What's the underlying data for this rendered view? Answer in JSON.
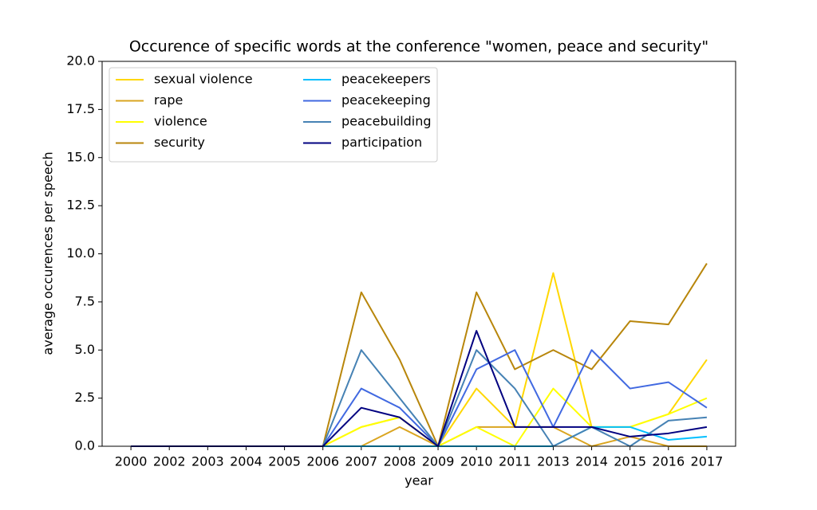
{
  "chart_data": {
    "type": "line",
    "title": "Occurence of specific words at the conference \"women, peace and security\"",
    "x_label": "year",
    "y_label": "average occurences per speech",
    "categories": [
      "2000",
      "2002",
      "2003",
      "2004",
      "2005",
      "2006",
      "2007",
      "2008",
      "2009",
      "2010",
      "2011",
      "2013",
      "2014",
      "2015",
      "2016",
      "2017"
    ],
    "ylim": [
      0,
      20
    ],
    "yticks": [
      {
        "value": 0,
        "label": "0.0"
      },
      2.5,
      {
        "value": 5,
        "label": "5.0"
      },
      7.5,
      {
        "value": 10,
        "label": "10.0"
      },
      12.5,
      {
        "value": 15,
        "label": "15.0"
      },
      17.5,
      {
        "value": 20,
        "label": "20.0"
      }
    ],
    "legend": "upper left",
    "grid": false,
    "series": [
      {
        "name": "sexual violence",
        "color": "#ffd700",
        "values": [
          0,
          0,
          0,
          0,
          0,
          0,
          1,
          1.5,
          0,
          3,
          1,
          9,
          1,
          1,
          1.67,
          4.5
        ]
      },
      {
        "name": "rape",
        "color": "#daa520",
        "values": [
          0,
          0,
          0,
          0,
          0,
          0,
          0,
          1,
          0,
          1,
          1,
          1,
          0,
          0.5,
          0,
          0
        ]
      },
      {
        "name": "violence",
        "color": "#ffff00",
        "values": [
          0,
          0,
          0,
          0,
          0,
          0,
          1,
          1.5,
          0,
          1,
          0,
          3,
          1,
          1,
          1.67,
          2.5
        ]
      },
      {
        "name": "security",
        "color": "#b8860b",
        "values": [
          0,
          0,
          0,
          0,
          0,
          0,
          8,
          4.5,
          0,
          8,
          4,
          5,
          4,
          6.5,
          6.33,
          9.5
        ]
      },
      {
        "name": "peacekeepers",
        "color": "#00bfff",
        "values": [
          0,
          0,
          0,
          0,
          0,
          0,
          0,
          0,
          0,
          0,
          0,
          0,
          1,
          1,
          0.33,
          0.5
        ]
      },
      {
        "name": "peacekeeping",
        "color": "#4169e1",
        "values": [
          0,
          0,
          0,
          0,
          0,
          0,
          3,
          2,
          0,
          4,
          5,
          1,
          5,
          3,
          3.33,
          2
        ]
      },
      {
        "name": "peacebuilding",
        "color": "#4682b4",
        "values": [
          0,
          0,
          0,
          0,
          0,
          0,
          5,
          2.5,
          0,
          5,
          3,
          0,
          1,
          0,
          1.33,
          1.5
        ]
      },
      {
        "name": "participation",
        "color": "#000080",
        "values": [
          0,
          0,
          0,
          0,
          0,
          0,
          2,
          1.5,
          0,
          6,
          1,
          1,
          1,
          0.5,
          0.67,
          1
        ]
      }
    ]
  }
}
